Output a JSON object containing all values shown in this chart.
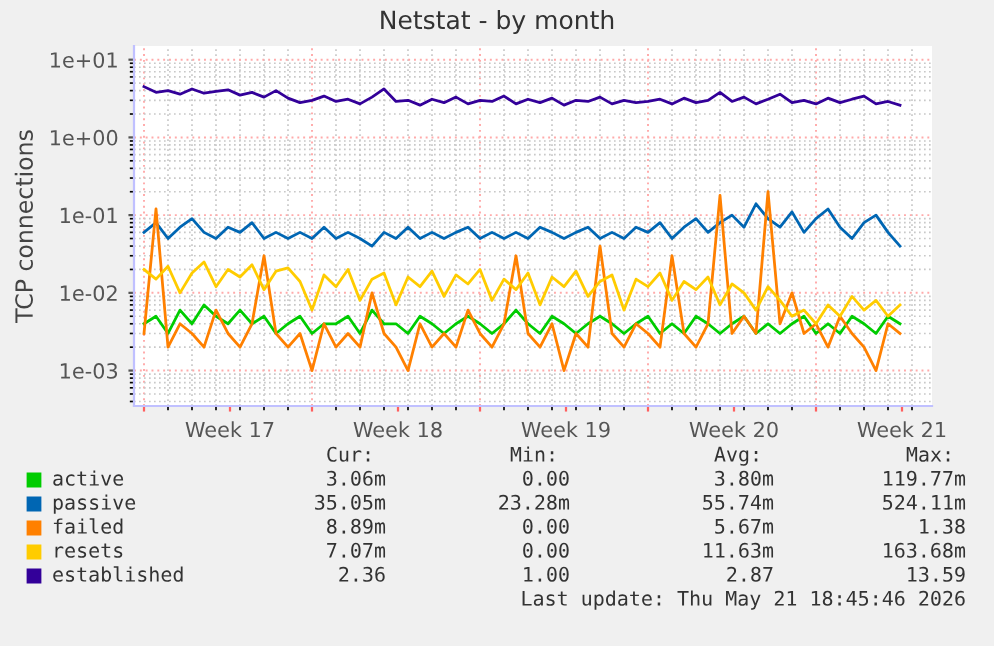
{
  "chart_data": {
    "type": "line",
    "title": "Netstat - by month",
    "ylabel": "TCP connections",
    "x": [
      "2026-04-20T00:00",
      "2026-04-20T12:00",
      "2026-04-21T00:00",
      "2026-04-21T12:00",
      "2026-04-22T00:00",
      "2026-04-22T12:00",
      "2026-04-23T00:00",
      "2026-04-23T12:00",
      "2026-04-24T00:00",
      "2026-04-24T12:00",
      "2026-04-25T00:00",
      "2026-04-25T12:00",
      "2026-04-26T00:00",
      "2026-04-26T12:00",
      "2026-04-27T00:00",
      "2026-04-27T12:00",
      "2026-04-28T00:00",
      "2026-04-28T12:00",
      "2026-04-29T00:00",
      "2026-04-29T12:00",
      "2026-04-30T00:00",
      "2026-04-30T12:00",
      "2026-05-01T00:00",
      "2026-05-01T12:00",
      "2026-05-02T00:00",
      "2026-05-02T12:00",
      "2026-05-03T00:00",
      "2026-05-03T12:00",
      "2026-05-04T00:00",
      "2026-05-04T12:00",
      "2026-05-05T00:00",
      "2026-05-05T12:00",
      "2026-05-06T00:00",
      "2026-05-06T12:00",
      "2026-05-07T00:00",
      "2026-05-07T12:00",
      "2026-05-08T00:00",
      "2026-05-08T12:00",
      "2026-05-09T00:00",
      "2026-05-09T12:00",
      "2026-05-10T00:00",
      "2026-05-10T12:00",
      "2026-05-11T00:00",
      "2026-05-11T12:00",
      "2026-05-12T00:00",
      "2026-05-12T12:00",
      "2026-05-13T00:00",
      "2026-05-13T12:00",
      "2026-05-14T00:00",
      "2026-05-14T12:00",
      "2026-05-15T00:00",
      "2026-05-15T12:00",
      "2026-05-16T00:00",
      "2026-05-16T12:00",
      "2026-05-17T00:00",
      "2026-05-17T12:00",
      "2026-05-18T00:00",
      "2026-05-18T12:00",
      "2026-05-19T00:00",
      "2026-05-19T12:00",
      "2026-05-20T00:00",
      "2026-05-20T12:00",
      "2026-05-21T00:00",
      "2026-05-21T12:00"
    ],
    "series": [
      {
        "name": "active",
        "color": "#00cc00",
        "values": [
          0.004,
          0.005,
          0.003,
          0.006,
          0.004,
          0.007,
          0.005,
          0.004,
          0.006,
          0.004,
          0.005,
          0.003,
          0.004,
          0.005,
          0.003,
          0.004,
          0.004,
          0.005,
          0.003,
          0.006,
          0.004,
          0.004,
          0.003,
          0.005,
          0.004,
          0.003,
          0.004,
          0.005,
          0.004,
          0.003,
          0.004,
          0.006,
          0.004,
          0.003,
          0.005,
          0.004,
          0.003,
          0.004,
          0.005,
          0.004,
          0.003,
          0.004,
          0.005,
          0.003,
          0.004,
          0.003,
          0.005,
          0.004,
          0.003,
          0.004,
          0.005,
          0.003,
          0.004,
          0.003,
          0.004,
          0.005,
          0.003,
          0.004,
          0.003,
          0.005,
          0.004,
          0.003,
          0.005,
          0.004
        ]
      },
      {
        "name": "passive",
        "color": "#0066b3",
        "values": [
          0.06,
          0.08,
          0.05,
          0.07,
          0.09,
          0.06,
          0.05,
          0.07,
          0.06,
          0.08,
          0.05,
          0.06,
          0.05,
          0.06,
          0.05,
          0.07,
          0.05,
          0.06,
          0.05,
          0.04,
          0.06,
          0.05,
          0.07,
          0.05,
          0.06,
          0.05,
          0.06,
          0.07,
          0.05,
          0.06,
          0.05,
          0.06,
          0.05,
          0.07,
          0.06,
          0.05,
          0.06,
          0.07,
          0.05,
          0.06,
          0.05,
          0.07,
          0.06,
          0.08,
          0.05,
          0.07,
          0.09,
          0.06,
          0.08,
          0.1,
          0.07,
          0.14,
          0.09,
          0.07,
          0.11,
          0.06,
          0.09,
          0.12,
          0.07,
          0.05,
          0.08,
          0.1,
          0.06,
          0.04
        ]
      },
      {
        "name": "failed",
        "color": "#ff8000",
        "values": [
          0.003,
          0.12,
          0.002,
          0.004,
          0.003,
          0.002,
          0.006,
          0.003,
          0.002,
          0.004,
          0.03,
          0.003,
          0.002,
          0.003,
          0.001,
          0.004,
          0.002,
          0.003,
          0.002,
          0.01,
          0.003,
          0.002,
          0.001,
          0.004,
          0.002,
          0.003,
          0.002,
          0.006,
          0.003,
          0.002,
          0.004,
          0.03,
          0.003,
          0.002,
          0.004,
          0.001,
          0.003,
          0.002,
          0.04,
          0.003,
          0.002,
          0.004,
          0.003,
          0.002,
          0.03,
          0.003,
          0.002,
          0.004,
          0.18,
          0.003,
          0.005,
          0.003,
          0.2,
          0.004,
          0.01,
          0.003,
          0.004,
          0.002,
          0.005,
          0.003,
          0.002,
          0.001,
          0.004,
          0.003
        ]
      },
      {
        "name": "resets",
        "color": "#ffcc00",
        "values": [
          0.02,
          0.015,
          0.022,
          0.01,
          0.018,
          0.025,
          0.012,
          0.02,
          0.016,
          0.023,
          0.011,
          0.019,
          0.021,
          0.014,
          0.006,
          0.017,
          0.012,
          0.02,
          0.008,
          0.015,
          0.018,
          0.007,
          0.016,
          0.012,
          0.019,
          0.009,
          0.017,
          0.013,
          0.02,
          0.008,
          0.015,
          0.011,
          0.018,
          0.007,
          0.016,
          0.012,
          0.019,
          0.009,
          0.014,
          0.017,
          0.006,
          0.015,
          0.012,
          0.018,
          0.008,
          0.014,
          0.011,
          0.016,
          0.007,
          0.013,
          0.01,
          0.006,
          0.012,
          0.008,
          0.005,
          0.006,
          0.004,
          0.007,
          0.005,
          0.009,
          0.006,
          0.008,
          0.005,
          0.007
        ]
      },
      {
        "name": "established",
        "color": "#330099",
        "values": [
          4.5,
          3.8,
          4.0,
          3.6,
          4.2,
          3.7,
          3.9,
          4.1,
          3.5,
          3.8,
          3.3,
          4.0,
          3.2,
          2.8,
          3.0,
          3.4,
          2.9,
          3.1,
          2.7,
          3.3,
          4.2,
          2.9,
          3.0,
          2.6,
          3.1,
          2.8,
          3.3,
          2.7,
          3.0,
          2.9,
          3.4,
          2.7,
          3.1,
          2.8,
          3.2,
          2.6,
          3.0,
          2.9,
          3.3,
          2.7,
          3.0,
          2.8,
          2.9,
          3.1,
          2.7,
          3.2,
          2.8,
          3.0,
          3.8,
          2.9,
          3.3,
          2.7,
          3.1,
          3.6,
          2.8,
          3.0,
          2.7,
          3.2,
          2.8,
          3.1,
          3.4,
          2.7,
          2.9,
          2.6
        ]
      }
    ],
    "log": "y",
    "ylim": [
      0.00035,
      15
    ],
    "yticks": [
      {
        "value": 0.001,
        "label": "1e-03"
      },
      {
        "value": 0.01,
        "label": "1e-02"
      },
      {
        "value": 0.1,
        "label": "1e-01"
      },
      {
        "value": 1,
        "label": "1e+00"
      },
      {
        "value": 10,
        "label": "1e+01"
      }
    ],
    "xlim": [
      "2026-04-19T14:00",
      "2026-05-22T20:00"
    ],
    "xticks": [
      {
        "value": "2026-04-20",
        "label": null
      },
      {
        "value": "2026-04-23T14:00",
        "label": "Week 17"
      },
      {
        "value": "2026-04-27",
        "label": null
      },
      {
        "value": "2026-04-30T14:00",
        "label": "Week 18"
      },
      {
        "value": "2026-05-04",
        "label": null
      },
      {
        "value": "2026-05-07T14:00",
        "label": "Week 19"
      },
      {
        "value": "2026-05-11",
        "label": null
      },
      {
        "value": "2026-05-14T14:00",
        "label": "Week 20"
      },
      {
        "value": "2026-05-18",
        "label": null
      },
      {
        "value": "2026-05-21T14:00",
        "label": "Week 21"
      }
    ],
    "grid": true,
    "legend": "bottom",
    "line_style": "solid",
    "marker": "none",
    "annotations": [
      "Cur:",
      "Min:",
      "Avg:",
      "Max:",
      "3.06m",
      "0.00",
      "3.80m",
      "119.77m",
      "35.05m",
      "23.28m",
      "55.74m",
      "524.11m",
      "8.89m",
      "0.00",
      "5.67m",
      "1.38",
      "7.07m",
      "0.00",
      "11.63m",
      "163.68m",
      "2.36",
      "1.00",
      "2.87",
      "13.59",
      "Last update: Thu May 21 18:45:46 2026"
    ]
  }
}
